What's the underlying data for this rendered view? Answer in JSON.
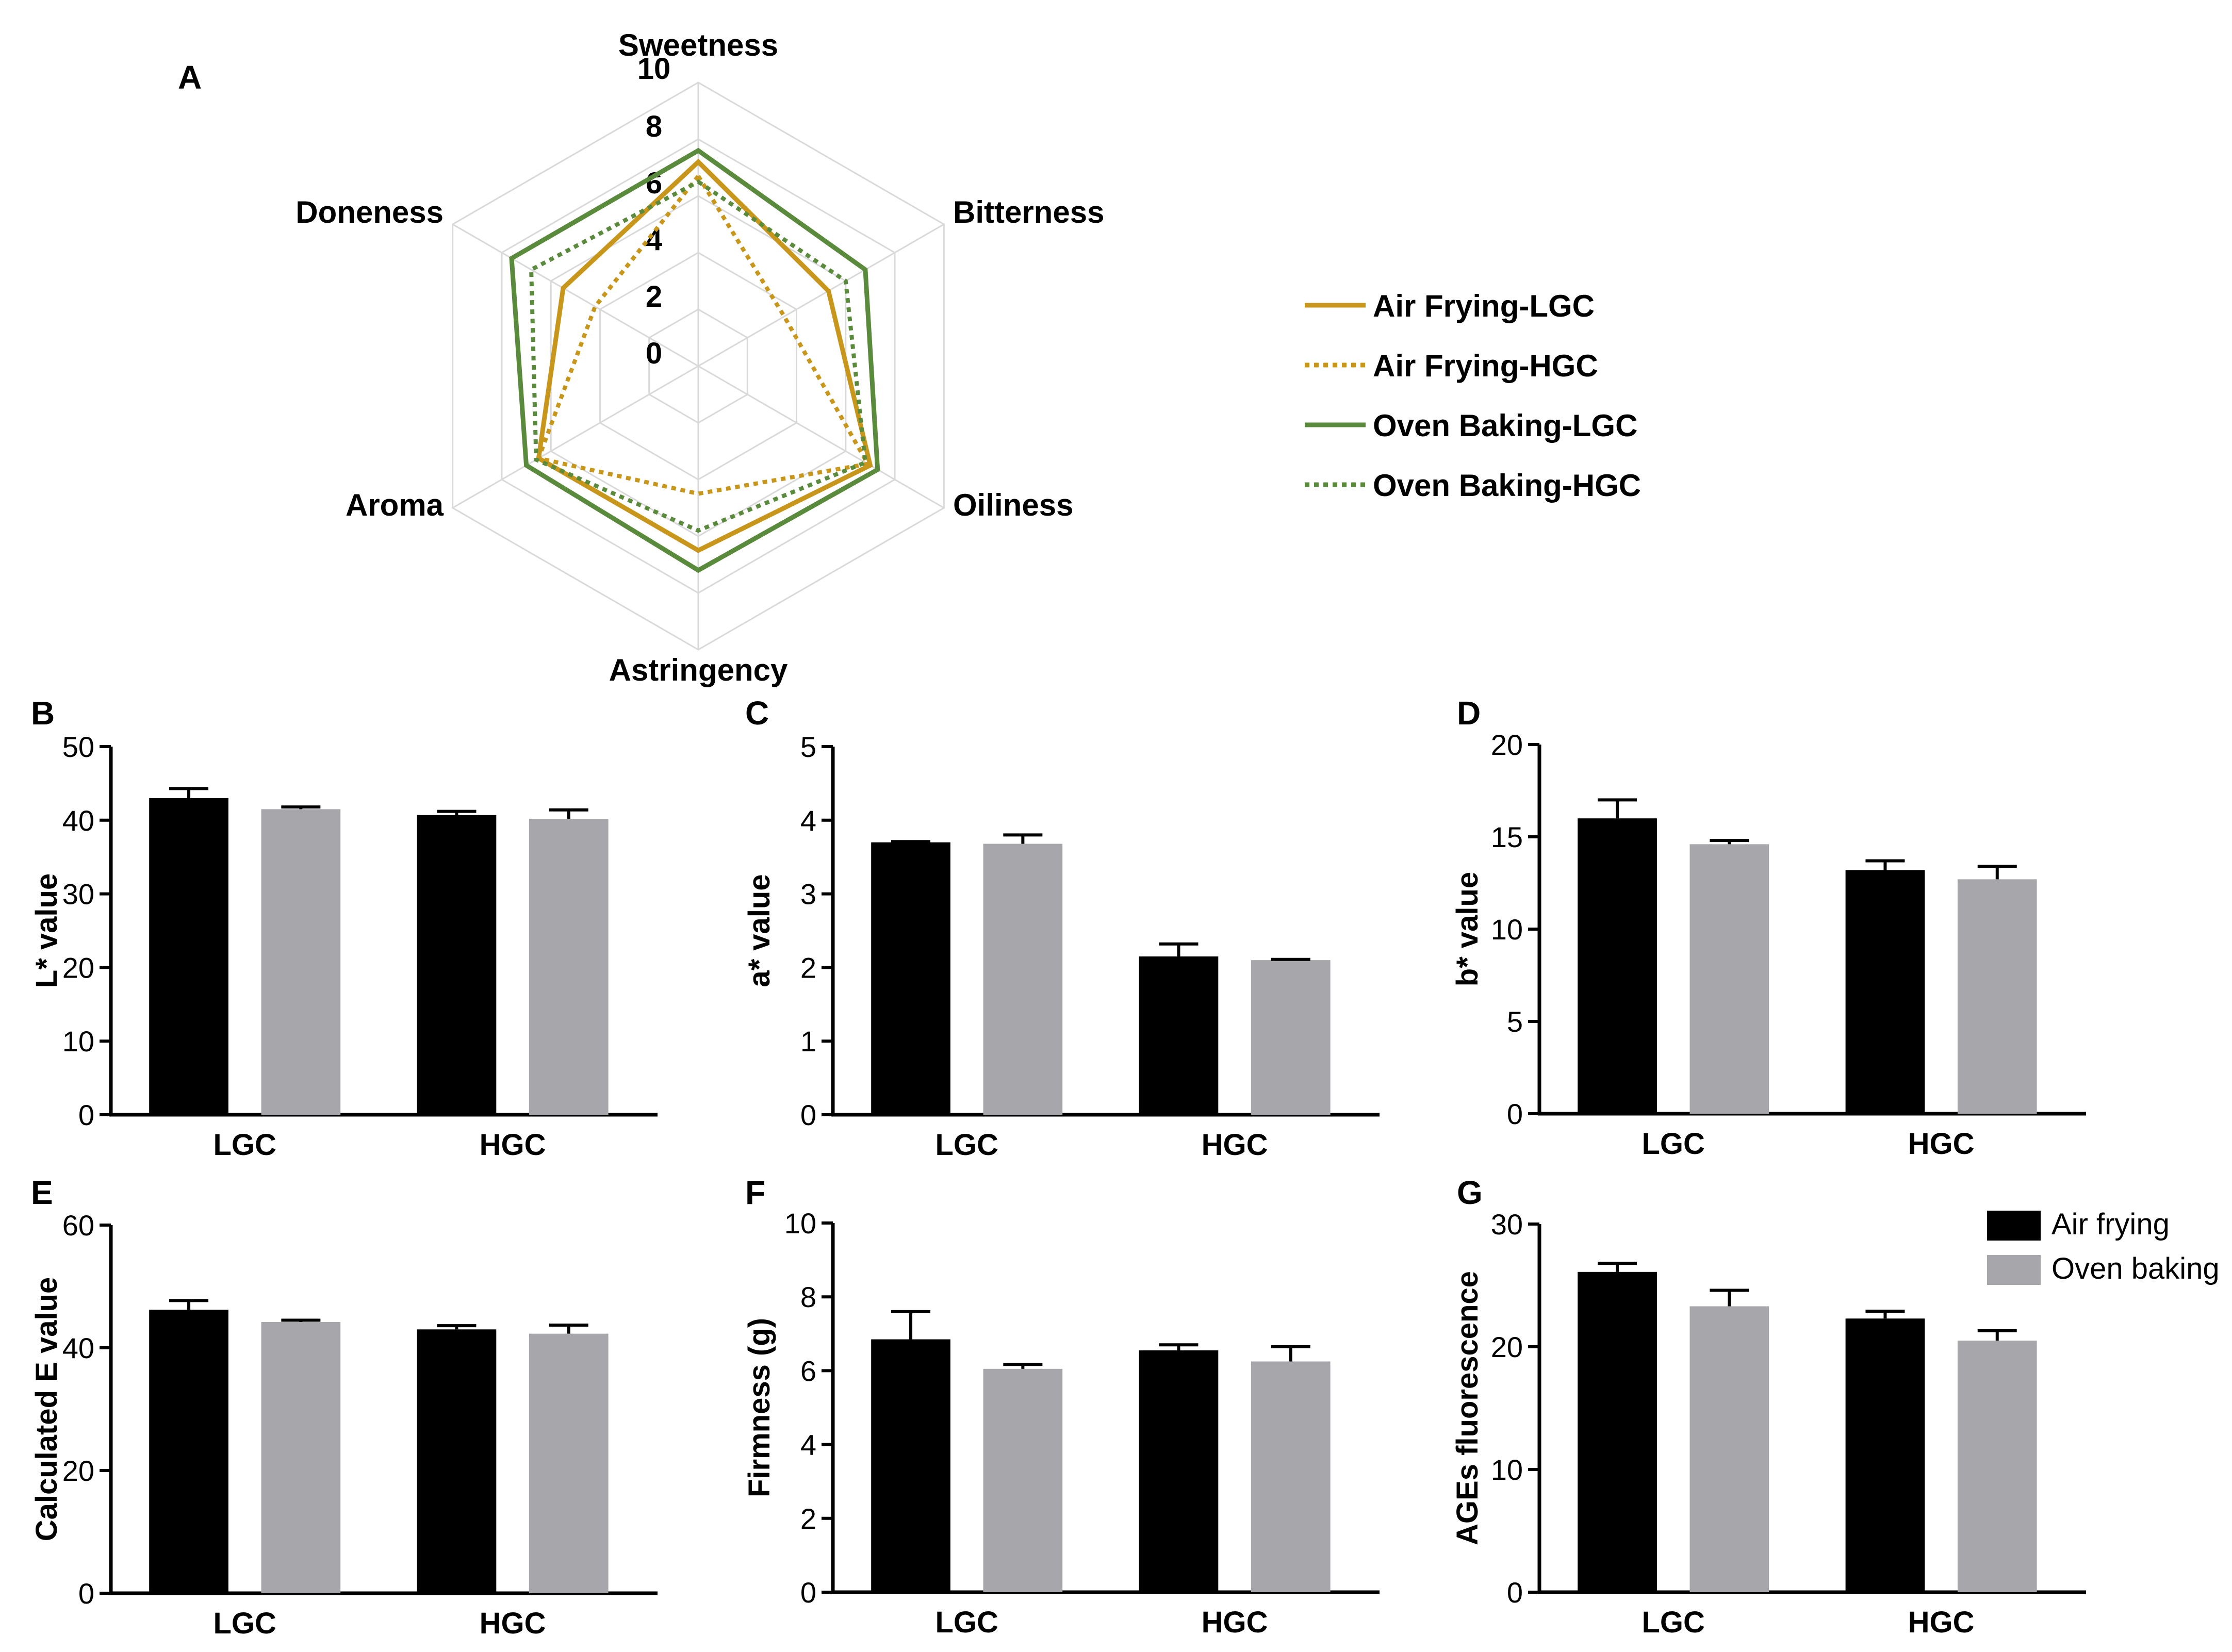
{
  "colors": {
    "air_frying_radar": "#c8961a",
    "oven_baking_radar": "#5a8a3c",
    "air_frying_bar": "#000000",
    "oven_baking_bar": "#a7a7ab",
    "grid": "#d9d9d9"
  },
  "chart_data": [
    {
      "id": "A",
      "panel_label": "A",
      "type": "radar",
      "axes": [
        "Sweetness",
        "Bitterness",
        "Oiliness",
        "Astringency",
        "Aroma",
        "Doneness"
      ],
      "rmin": 0,
      "rmax": 10,
      "ticks": [
        "0",
        "2",
        "4",
        "6",
        "8",
        "10"
      ],
      "series": [
        {
          "name": "Air Frying-LGC",
          "color": "#c8961a",
          "style": "solid",
          "values": [
            7.2,
            5.3,
            7.0,
            6.5,
            6.5,
            5.5
          ]
        },
        {
          "name": "Air Frying-HGC",
          "color": "#c8961a",
          "style": "dotted",
          "values": [
            6.7,
            3.5,
            6.9,
            4.5,
            6.5,
            4.2
          ]
        },
        {
          "name": "Oven Baking-LGC",
          "color": "#5a8a3c",
          "style": "solid",
          "values": [
            7.6,
            6.8,
            7.3,
            7.2,
            7.0,
            7.6
          ]
        },
        {
          "name": "Oven Baking-HGC",
          "color": "#5a8a3c",
          "style": "dotted",
          "values": [
            6.5,
            6.0,
            6.8,
            5.8,
            6.6,
            6.8
          ]
        }
      ]
    },
    {
      "id": "B",
      "panel_label": "B",
      "type": "bar",
      "ylabel": "L* value",
      "ylim": [
        0,
        50
      ],
      "yticks": [
        "0",
        "10",
        "20",
        "30",
        "40",
        "50"
      ],
      "categories": [
        "LGC",
        "HGC"
      ],
      "series": [
        {
          "name": "Air frying",
          "color": "#000000",
          "values": [
            43.0,
            40.7
          ],
          "errors": [
            1.3,
            0.5
          ]
        },
        {
          "name": "Oven baking",
          "color": "#a7a7ab",
          "values": [
            41.5,
            40.2
          ],
          "errors": [
            0.3,
            1.2
          ]
        }
      ]
    },
    {
      "id": "C",
      "panel_label": "C",
      "type": "bar",
      "ylabel": "a* value",
      "ylim": [
        0,
        5
      ],
      "yticks": [
        "0",
        "1",
        "2",
        "3",
        "4",
        "5"
      ],
      "categories": [
        "LGC",
        "HGC"
      ],
      "series": [
        {
          "name": "Air frying",
          "color": "#000000",
          "values": [
            3.7,
            2.15
          ],
          "errors": [
            0.01,
            0.17
          ]
        },
        {
          "name": "Oven baking",
          "color": "#a7a7ab",
          "values": [
            3.68,
            2.1
          ],
          "errors": [
            0.12,
            0.01
          ]
        }
      ]
    },
    {
      "id": "D",
      "panel_label": "D",
      "type": "bar",
      "ylabel": "b* value",
      "ylim": [
        0,
        20
      ],
      "yticks": [
        "0",
        "5",
        "10",
        "15",
        "20"
      ],
      "categories": [
        "LGC",
        "HGC"
      ],
      "series": [
        {
          "name": "Air frying",
          "color": "#000000",
          "values": [
            16.0,
            13.2
          ],
          "errors": [
            1.0,
            0.5
          ]
        },
        {
          "name": "Oven baking",
          "color": "#a7a7ab",
          "values": [
            14.6,
            12.7
          ],
          "errors": [
            0.2,
            0.7
          ]
        }
      ]
    },
    {
      "id": "E",
      "panel_label": "E",
      "type": "bar",
      "ylabel": "Calculated  E value",
      "ylim": [
        0,
        60
      ],
      "yticks": [
        "0",
        "20",
        "40",
        "60"
      ],
      "categories": [
        "LGC",
        "HGC"
      ],
      "series": [
        {
          "name": "Air frying",
          "color": "#000000",
          "values": [
            46.2,
            43.0
          ],
          "errors": [
            1.5,
            0.6
          ]
        },
        {
          "name": "Oven baking",
          "color": "#a7a7ab",
          "values": [
            44.2,
            42.3
          ],
          "errors": [
            0.3,
            1.4
          ]
        }
      ]
    },
    {
      "id": "F",
      "panel_label": "F",
      "type": "bar",
      "ylabel": "Firmness (g)",
      "ylim": [
        0,
        10
      ],
      "yticks": [
        "0",
        "2",
        "4",
        "6",
        "8",
        "10"
      ],
      "categories": [
        "LGC",
        "HGC"
      ],
      "series": [
        {
          "name": "Air frying",
          "color": "#000000",
          "values": [
            6.85,
            6.55
          ],
          "errors": [
            0.75,
            0.15
          ]
        },
        {
          "name": "Oven baking",
          "color": "#a7a7ab",
          "values": [
            6.05,
            6.25
          ],
          "errors": [
            0.12,
            0.4
          ]
        }
      ]
    },
    {
      "id": "G",
      "panel_label": "G",
      "type": "bar",
      "ylabel": "AGEs fluorescence",
      "ylim": [
        0,
        30
      ],
      "yticks": [
        "0",
        "10",
        "20",
        "30"
      ],
      "categories": [
        "LGC",
        "HGC"
      ],
      "legend": [
        "Air frying",
        "Oven baking"
      ],
      "series": [
        {
          "name": "Air frying",
          "color": "#000000",
          "values": [
            26.1,
            22.3
          ],
          "errors": [
            0.7,
            0.6
          ]
        },
        {
          "name": "Oven baking",
          "color": "#a7a7ab",
          "values": [
            23.3,
            20.5
          ],
          "errors": [
            1.3,
            0.8
          ]
        }
      ]
    }
  ]
}
